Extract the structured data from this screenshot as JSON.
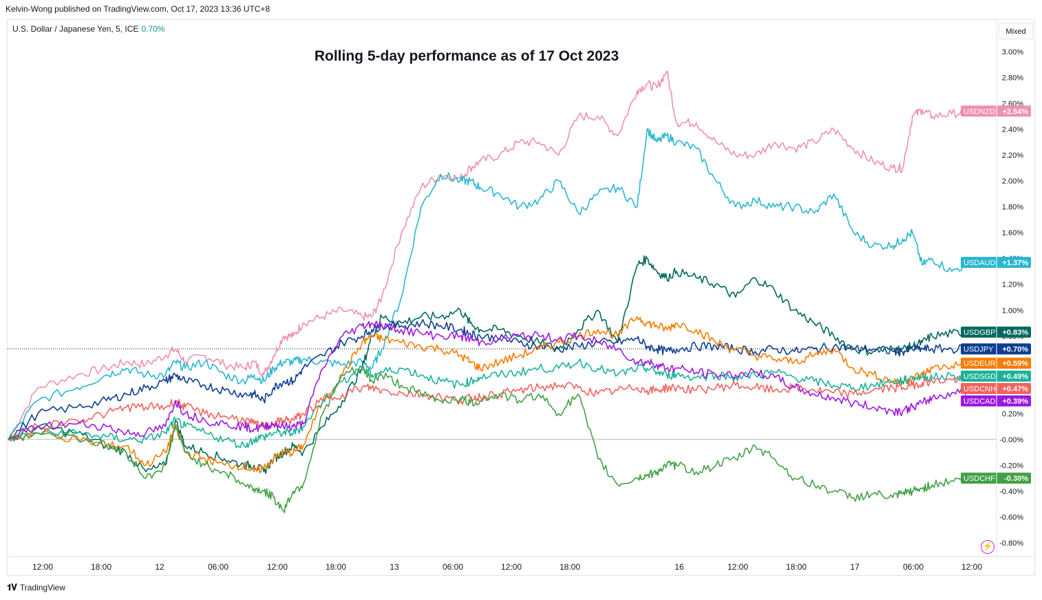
{
  "header": {
    "published": "Kelvin-Wong published on TradingView.com, Oct 17, 2023 13:36 UTC+8",
    "symbol": "U.S. Dollar / Japanese Yen, 5, ICE",
    "symbol_change": "0.70%",
    "scale_mode": "Mixed"
  },
  "footer": {
    "brand": "TradingView",
    "logo_icon": "tradingview-logo-icon",
    "alert_icon": "lightning-bolt-icon"
  },
  "colors": {
    "USDNZD": "#f08fb0",
    "USDAUD": "#29b6d0",
    "USDGBP": "#00695c",
    "USDJPY": "#0d3d91",
    "USDEUR": "#f57c00",
    "USDSGD": "#1bb29a",
    "USDCNH": "#f0625e",
    "USDCAD": "#9c19e0",
    "USDCHF": "#43a047"
  },
  "chart_data": {
    "type": "line",
    "title": "Rolling 5-day performance as of 17 Oct 2023",
    "x_ticks": [
      "12:00",
      "18:00",
      "12",
      "06:00",
      "12:00",
      "18:00",
      "13",
      "06:00",
      "12:00",
      "18:00",
      "16",
      "12:00",
      "18:00",
      "17",
      "06:00",
      "12:00"
    ],
    "y_ticks": [
      "3.00%",
      "2.80%",
      "2.60%",
      "2.40%",
      "2.20%",
      "2.00%",
      "1.80%",
      "1.60%",
      "1.40%",
      "1.20%",
      "1.00%",
      "0.80%",
      "0.60%",
      "0.40%",
      "0.20%",
      "-0.00%",
      "-0.20%",
      "-0.40%",
      "-0.60%",
      "-0.80%"
    ],
    "ylim": [
      -0.85,
      3.1
    ],
    "xlim": [
      0,
      100
    ],
    "grid": false,
    "series": [
      {
        "name": "USDNZD",
        "label": "+2.54%",
        "last": 2.54,
        "x": [
          0,
          3,
          7,
          10,
          12,
          14,
          16,
          17,
          18,
          20,
          22,
          24,
          25,
          26,
          27,
          28,
          29,
          30,
          32,
          34,
          36,
          37,
          38,
          40,
          42,
          44,
          46,
          47,
          48,
          50,
          52,
          54,
          56,
          58,
          60,
          62,
          64,
          65,
          66,
          67,
          68,
          70,
          72,
          74,
          76,
          78,
          80,
          82,
          84,
          86,
          88,
          90,
          91,
          92,
          93,
          94,
          96,
          98
        ],
        "values": [
          0,
          0.4,
          0.5,
          0.55,
          0.6,
          0.58,
          0.65,
          0.7,
          0.6,
          0.65,
          0.58,
          0.55,
          0.6,
          0.5,
          0.65,
          0.8,
          0.8,
          0.9,
          0.95,
          1.0,
          0.95,
          0.95,
          1.1,
          1.6,
          1.95,
          2.05,
          2.02,
          2.1,
          2.15,
          2.2,
          2.3,
          2.3,
          2.2,
          2.5,
          2.5,
          2.35,
          2.7,
          2.75,
          2.72,
          2.85,
          2.45,
          2.45,
          2.3,
          2.2,
          2.2,
          2.3,
          2.25,
          2.3,
          2.4,
          2.25,
          2.15,
          2.1,
          2.1,
          2.5,
          2.55,
          2.5,
          2.52,
          2.54
        ]
      },
      {
        "name": "USDAUD",
        "label": "+1.37%",
        "last": 1.37,
        "x": [
          0,
          3,
          7,
          10,
          12,
          14,
          16,
          17,
          18,
          20,
          22,
          24,
          25,
          26,
          27,
          28,
          29,
          30,
          32,
          34,
          36,
          37,
          38,
          40,
          42,
          44,
          46,
          47,
          48,
          50,
          52,
          54,
          56,
          58,
          60,
          62,
          64,
          65,
          66,
          67,
          68,
          70,
          72,
          74,
          76,
          78,
          80,
          82,
          84,
          86,
          88,
          90,
          91,
          92,
          93,
          94,
          96,
          98
        ],
        "values": [
          0,
          0.3,
          0.4,
          0.5,
          0.55,
          0.5,
          0.5,
          0.6,
          0.55,
          0.6,
          0.5,
          0.45,
          0.5,
          0.45,
          0.55,
          0.6,
          0.6,
          0.62,
          0.6,
          0.58,
          0.6,
          0.55,
          0.7,
          1.1,
          1.8,
          2.05,
          2.0,
          2.0,
          1.95,
          1.9,
          1.8,
          1.85,
          2.0,
          1.75,
          1.9,
          1.95,
          1.8,
          2.4,
          2.3,
          2.35,
          2.3,
          2.25,
          2.0,
          1.8,
          1.85,
          1.8,
          1.8,
          1.75,
          1.9,
          1.6,
          1.5,
          1.5,
          1.55,
          1.6,
          1.35,
          1.4,
          1.3,
          1.37
        ]
      },
      {
        "name": "USDGBP",
        "label": "+0.83%",
        "last": 0.83,
        "x": [
          0,
          3,
          7,
          10,
          12,
          14,
          16,
          17,
          18,
          20,
          22,
          24,
          25,
          26,
          27,
          28,
          29,
          30,
          32,
          34,
          36,
          37,
          38,
          40,
          42,
          44,
          46,
          47,
          48,
          50,
          52,
          54,
          56,
          58,
          60,
          62,
          64,
          65,
          66,
          67,
          68,
          70,
          72,
          74,
          76,
          78,
          80,
          82,
          84,
          86,
          88,
          90,
          91,
          92,
          93,
          94,
          96,
          98
        ],
        "values": [
          0,
          0.1,
          0.05,
          -0.05,
          -0.1,
          -0.25,
          -0.2,
          0.15,
          -0.05,
          -0.1,
          -0.15,
          -0.2,
          -0.2,
          -0.25,
          -0.15,
          -0.1,
          -0.05,
          -0.1,
          0.1,
          0.3,
          0.55,
          0.8,
          0.95,
          0.9,
          0.95,
          0.95,
          1.0,
          0.9,
          0.85,
          0.85,
          0.8,
          0.75,
          0.7,
          0.85,
          1.0,
          0.75,
          1.35,
          1.4,
          1.3,
          1.25,
          1.3,
          1.25,
          1.2,
          1.1,
          1.25,
          1.15,
          1.0,
          0.9,
          0.8,
          0.7,
          0.68,
          0.7,
          0.7,
          0.72,
          0.75,
          0.8,
          0.82,
          0.83
        ]
      },
      {
        "name": "USDJPY",
        "label": "+0.70%",
        "last": 0.7,
        "x": [
          0,
          3,
          7,
          10,
          12,
          14,
          16,
          17,
          18,
          20,
          22,
          24,
          25,
          26,
          27,
          28,
          29,
          30,
          32,
          34,
          36,
          37,
          38,
          40,
          42,
          44,
          46,
          47,
          48,
          50,
          52,
          54,
          56,
          58,
          60,
          62,
          64,
          65,
          66,
          67,
          68,
          70,
          72,
          74,
          76,
          78,
          80,
          82,
          84,
          86,
          88,
          90,
          91,
          92,
          93,
          94,
          96,
          98
        ],
        "values": [
          0,
          0.2,
          0.25,
          0.3,
          0.35,
          0.4,
          0.45,
          0.5,
          0.45,
          0.42,
          0.38,
          0.35,
          0.35,
          0.3,
          0.4,
          0.45,
          0.45,
          0.55,
          0.65,
          0.75,
          0.8,
          0.85,
          0.88,
          0.88,
          0.9,
          0.88,
          0.85,
          0.82,
          0.8,
          0.78,
          0.75,
          0.72,
          0.7,
          0.72,
          0.75,
          0.75,
          0.78,
          0.72,
          0.7,
          0.68,
          0.7,
          0.72,
          0.72,
          0.7,
          0.68,
          0.7,
          0.68,
          0.7,
          0.72,
          0.7,
          0.7,
          0.68,
          0.68,
          0.7,
          0.7,
          0.7,
          0.7,
          0.7
        ]
      },
      {
        "name": "USDEUR",
        "label": "+0.59%",
        "last": 0.59,
        "x": [
          0,
          3,
          7,
          10,
          12,
          14,
          16,
          17,
          18,
          20,
          22,
          24,
          25,
          26,
          27,
          28,
          29,
          30,
          32,
          34,
          36,
          37,
          38,
          40,
          42,
          44,
          46,
          47,
          48,
          50,
          52,
          54,
          56,
          58,
          60,
          62,
          64,
          65,
          66,
          67,
          68,
          70,
          72,
          74,
          76,
          78,
          80,
          82,
          84,
          86,
          88,
          90,
          91,
          92,
          93,
          94,
          96,
          98
        ],
        "values": [
          0,
          0.05,
          0.0,
          -0.05,
          -0.05,
          -0.2,
          -0.1,
          0.1,
          -0.1,
          -0.15,
          -0.2,
          -0.2,
          -0.25,
          -0.22,
          -0.15,
          -0.1,
          -0.1,
          -0.05,
          0.3,
          0.5,
          0.75,
          0.8,
          0.78,
          0.75,
          0.72,
          0.7,
          0.65,
          0.6,
          0.55,
          0.6,
          0.65,
          0.7,
          0.75,
          0.8,
          0.85,
          0.8,
          0.95,
          0.9,
          0.88,
          0.85,
          0.9,
          0.85,
          0.75,
          0.7,
          0.65,
          0.62,
          0.6,
          0.65,
          0.7,
          0.55,
          0.5,
          0.45,
          0.45,
          0.48,
          0.5,
          0.55,
          0.57,
          0.59
        ]
      },
      {
        "name": "USDSGD",
        "label": "+0.49%",
        "last": 0.49,
        "x": [
          0,
          3,
          7,
          10,
          12,
          14,
          16,
          17,
          18,
          20,
          22,
          24,
          25,
          26,
          27,
          28,
          29,
          30,
          32,
          34,
          36,
          37,
          38,
          40,
          42,
          44,
          46,
          47,
          48,
          50,
          52,
          54,
          56,
          58,
          60,
          62,
          64,
          65,
          66,
          67,
          68,
          70,
          72,
          74,
          76,
          78,
          80,
          82,
          84,
          86,
          88,
          90,
          91,
          92,
          93,
          94,
          96,
          98
        ],
        "values": [
          0,
          0.05,
          0.05,
          0.02,
          0.0,
          0.0,
          0.05,
          0.15,
          0.1,
          0.05,
          0.0,
          -0.05,
          0.0,
          0.02,
          0.05,
          0.05,
          0.05,
          0.1,
          0.3,
          0.45,
          0.55,
          0.5,
          0.52,
          0.55,
          0.5,
          0.45,
          0.42,
          0.45,
          0.48,
          0.5,
          0.52,
          0.55,
          0.55,
          0.6,
          0.55,
          0.5,
          0.55,
          0.55,
          0.52,
          0.5,
          0.5,
          0.48,
          0.5,
          0.48,
          0.5,
          0.52,
          0.48,
          0.45,
          0.42,
          0.4,
          0.42,
          0.45,
          0.45,
          0.48,
          0.48,
          0.48,
          0.49,
          0.49
        ]
      },
      {
        "name": "USDCNH",
        "label": "+0.47%",
        "last": 0.47,
        "x": [
          0,
          3,
          7,
          10,
          12,
          14,
          16,
          17,
          18,
          20,
          22,
          24,
          25,
          26,
          27,
          28,
          29,
          30,
          32,
          34,
          36,
          37,
          38,
          40,
          42,
          44,
          46,
          47,
          48,
          50,
          52,
          54,
          56,
          58,
          60,
          62,
          64,
          65,
          66,
          67,
          68,
          70,
          72,
          74,
          76,
          78,
          80,
          82,
          84,
          86,
          88,
          90,
          91,
          92,
          93,
          94,
          96,
          98
        ],
        "values": [
          0,
          0.1,
          0.15,
          0.2,
          0.25,
          0.25,
          0.25,
          0.3,
          0.25,
          0.2,
          0.18,
          0.15,
          0.12,
          0.1,
          0.12,
          0.15,
          0.15,
          0.2,
          0.3,
          0.35,
          0.4,
          0.4,
          0.38,
          0.36,
          0.35,
          0.33,
          0.3,
          0.32,
          0.33,
          0.35,
          0.38,
          0.4,
          0.42,
          0.4,
          0.35,
          0.38,
          0.4,
          0.38,
          0.38,
          0.4,
          0.4,
          0.38,
          0.4,
          0.42,
          0.4,
          0.38,
          0.4,
          0.38,
          0.36,
          0.35,
          0.38,
          0.4,
          0.4,
          0.42,
          0.44,
          0.45,
          0.46,
          0.47
        ]
      },
      {
        "name": "USDCAD",
        "label": "+0.39%",
        "last": 0.39,
        "x": [
          0,
          3,
          7,
          10,
          12,
          14,
          16,
          17,
          18,
          20,
          22,
          24,
          25,
          26,
          27,
          28,
          29,
          30,
          32,
          34,
          36,
          37,
          38,
          40,
          42,
          44,
          46,
          47,
          48,
          50,
          52,
          54,
          56,
          58,
          60,
          62,
          64,
          65,
          66,
          67,
          68,
          70,
          72,
          74,
          76,
          78,
          80,
          82,
          84,
          86,
          88,
          90,
          91,
          92,
          93,
          94,
          96,
          98
        ],
        "values": [
          0,
          0.1,
          0.12,
          0.1,
          0.05,
          0.05,
          0.1,
          0.3,
          0.2,
          0.15,
          0.12,
          0.1,
          0.08,
          0.1,
          0.12,
          0.1,
          0.1,
          0.12,
          0.55,
          0.8,
          0.88,
          0.9,
          0.88,
          0.85,
          0.82,
          0.8,
          0.8,
          0.78,
          0.75,
          0.78,
          0.8,
          0.8,
          0.78,
          0.8,
          0.75,
          0.7,
          0.6,
          0.6,
          0.58,
          0.55,
          0.55,
          0.52,
          0.5,
          0.5,
          0.52,
          0.48,
          0.4,
          0.35,
          0.32,
          0.28,
          0.25,
          0.22,
          0.22,
          0.25,
          0.28,
          0.32,
          0.36,
          0.39
        ]
      },
      {
        "name": "USDCHF",
        "label": "-0.30%",
        "last": -0.3,
        "x": [
          0,
          3,
          7,
          10,
          12,
          14,
          16,
          17,
          18,
          20,
          22,
          24,
          25,
          26,
          27,
          28,
          29,
          30,
          32,
          34,
          36,
          37,
          38,
          40,
          42,
          44,
          46,
          47,
          48,
          50,
          52,
          54,
          56,
          58,
          60,
          62,
          64,
          65,
          66,
          67,
          68,
          70,
          72,
          74,
          76,
          78,
          80,
          82,
          84,
          86,
          88,
          90,
          91,
          92,
          93,
          94,
          96,
          98
        ],
        "values": [
          0,
          0.05,
          0.02,
          -0.05,
          -0.1,
          -0.3,
          -0.2,
          0.1,
          -0.1,
          -0.2,
          -0.25,
          -0.35,
          -0.38,
          -0.4,
          -0.45,
          -0.55,
          -0.4,
          -0.35,
          0.2,
          0.5,
          0.55,
          0.45,
          0.5,
          0.42,
          0.35,
          0.3,
          0.32,
          0.28,
          0.3,
          0.35,
          0.3,
          0.35,
          0.2,
          0.35,
          -0.15,
          -0.35,
          -0.3,
          -0.28,
          -0.25,
          -0.2,
          -0.2,
          -0.25,
          -0.2,
          -0.15,
          -0.05,
          -0.15,
          -0.3,
          -0.35,
          -0.4,
          -0.45,
          -0.42,
          -0.45,
          -0.42,
          -0.4,
          -0.38,
          -0.35,
          -0.32,
          -0.3
        ]
      }
    ]
  }
}
